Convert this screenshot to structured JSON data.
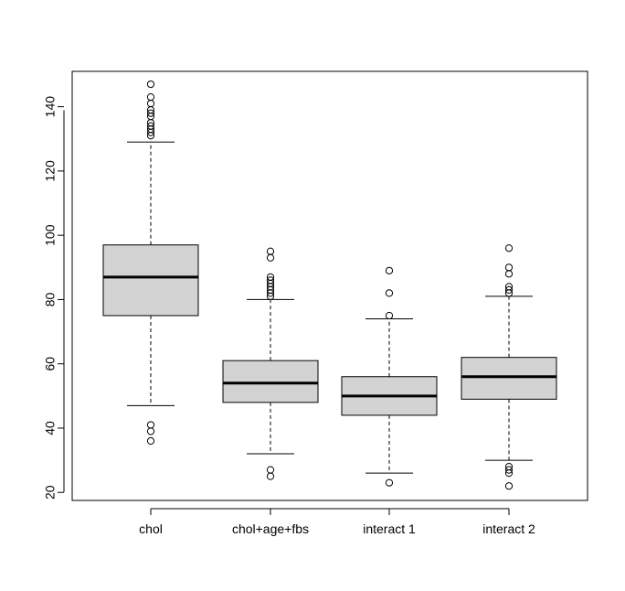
{
  "chart_data": {
    "type": "boxplot",
    "title": "",
    "xlabel": "",
    "ylabel": "",
    "ylim": [
      17.5,
      151
    ],
    "yticks": [
      20,
      40,
      60,
      80,
      100,
      120,
      140
    ],
    "grid": false,
    "box_fill": "#d3d3d3",
    "categories": [
      "chol",
      "chol+age+fbs",
      "interact 1",
      "interact 2"
    ],
    "boxes": [
      {
        "category": "chol",
        "whisker_low": 47,
        "q1": 75,
        "median": 87,
        "q3": 97,
        "whisker_high": 129,
        "outliers": [
          36,
          39,
          41,
          131,
          132,
          133,
          134,
          135,
          137,
          138,
          139,
          141,
          143,
          147
        ]
      },
      {
        "category": "chol+age+fbs",
        "whisker_low": 32,
        "q1": 48,
        "median": 54,
        "q3": 61,
        "whisker_high": 80,
        "outliers": [
          25,
          27,
          81,
          82,
          83,
          84,
          85,
          86,
          87,
          93,
          95
        ]
      },
      {
        "category": "interact 1",
        "whisker_low": 26,
        "q1": 44,
        "median": 50,
        "q3": 56,
        "whisker_high": 74,
        "outliers": [
          23,
          75,
          82,
          89
        ]
      },
      {
        "category": "interact 2",
        "whisker_low": 30,
        "q1": 49,
        "median": 56,
        "q3": 62,
        "whisker_high": 81,
        "outliers": [
          22,
          26,
          27,
          28,
          82,
          83,
          84,
          88,
          90,
          96
        ]
      }
    ]
  }
}
